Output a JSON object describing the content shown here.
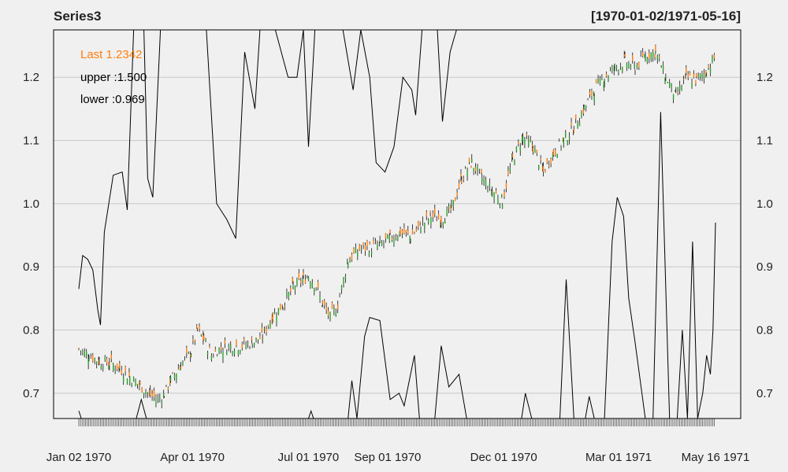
{
  "chart_data": {
    "type": "line",
    "title": "Series3",
    "date_range": "[1970-01-02/1971-05-16]",
    "x_range": [
      "1970-01-02",
      "1971-05-16"
    ],
    "ylim": [
      0.66,
      1.275
    ],
    "y_ticks": [
      0.7,
      0.8,
      0.9,
      1.0,
      1.1,
      1.2
    ],
    "y_tick_labels": [
      "0.7",
      "0.8",
      "0.9",
      "1.0",
      "1.1",
      "1.2"
    ],
    "x_ticks": [
      {
        "date": "1970-01-02",
        "label": "Jan 02 1970"
      },
      {
        "date": "1970-04-01",
        "label": "Apr 01 1970"
      },
      {
        "date": "1970-07-01",
        "label": "Jul 01 1970"
      },
      {
        "date": "1970-09-01",
        "label": "Sep 01 1970"
      },
      {
        "date": "1970-12-01",
        "label": "Dec 01 1970"
      },
      {
        "date": "1971-03-01",
        "label": "Mar 01 1971"
      },
      {
        "date": "1971-05-16",
        "label": "May 16 1971"
      }
    ],
    "grid": true,
    "legend": {
      "position": "top-left",
      "entries": [
        {
          "text": "Last 1.2342",
          "color": "#ff7f0e"
        },
        {
          "text": "upper :1.500",
          "color": "#000000"
        },
        {
          "text": "lower :0.969",
          "color": "#000000"
        }
      ]
    },
    "colors": {
      "up": "#2ca02c",
      "down": "#ff7f0e",
      "line": "#000000",
      "grid": "#c8c8c8"
    },
    "series": [
      {
        "type": "ohlc",
        "points": [
          [
            "1970-01-02",
            0.77
          ],
          [
            "1970-01-10",
            0.76
          ],
          [
            "1970-01-18",
            0.75
          ],
          [
            "1970-01-26",
            0.748
          ],
          [
            "1970-02-03",
            0.74
          ],
          [
            "1970-02-11",
            0.725
          ],
          [
            "1970-02-19",
            0.712
          ],
          [
            "1970-02-27",
            0.697
          ],
          [
            "1970-03-05",
            0.69
          ],
          [
            "1970-03-10",
            0.698
          ],
          [
            "1970-03-15",
            0.72
          ],
          [
            "1970-03-23",
            0.745
          ],
          [
            "1970-03-31",
            0.765
          ],
          [
            "1970-04-05",
            0.8
          ],
          [
            "1970-04-10",
            0.785
          ],
          [
            "1970-04-16",
            0.76
          ],
          [
            "1970-04-22",
            0.77
          ],
          [
            "1970-05-01",
            0.775
          ],
          [
            "1970-05-10",
            0.775
          ],
          [
            "1970-05-18",
            0.78
          ],
          [
            "1970-05-26",
            0.79
          ],
          [
            "1970-06-03",
            0.822
          ],
          [
            "1970-06-11",
            0.84
          ],
          [
            "1970-06-19",
            0.868
          ],
          [
            "1970-06-27",
            0.88
          ],
          [
            "1970-07-01",
            0.886
          ],
          [
            "1970-07-07",
            0.87
          ],
          [
            "1970-07-12",
            0.84
          ],
          [
            "1970-07-18",
            0.82
          ],
          [
            "1970-07-24",
            0.84
          ],
          [
            "1970-08-01",
            0.91
          ],
          [
            "1970-08-10",
            0.928
          ],
          [
            "1970-08-18",
            0.93
          ],
          [
            "1970-08-26",
            0.935
          ],
          [
            "1970-09-03",
            0.945
          ],
          [
            "1970-09-11",
            0.955
          ],
          [
            "1970-09-19",
            0.948
          ],
          [
            "1970-09-27",
            0.965
          ],
          [
            "1970-10-05",
            0.98
          ],
          [
            "1970-10-13",
            0.975
          ],
          [
            "1970-10-21",
            0.99
          ],
          [
            "1970-10-29",
            1.04
          ],
          [
            "1970-11-06",
            1.065
          ],
          [
            "1970-11-14",
            1.04
          ],
          [
            "1970-11-22",
            1.02
          ],
          [
            "1970-11-30",
            1.005
          ],
          [
            "1970-12-08",
            1.07
          ],
          [
            "1970-12-16",
            1.105
          ],
          [
            "1970-12-24",
            1.09
          ],
          [
            "1971-01-01",
            1.05
          ],
          [
            "1971-01-09",
            1.08
          ],
          [
            "1971-01-17",
            1.1
          ],
          [
            "1971-01-25",
            1.12
          ],
          [
            "1971-02-02",
            1.15
          ],
          [
            "1971-02-10",
            1.18
          ],
          [
            "1971-02-18",
            1.2
          ],
          [
            "1971-02-26",
            1.215
          ],
          [
            "1971-03-06",
            1.225
          ],
          [
            "1971-03-14",
            1.215
          ],
          [
            "1971-03-22",
            1.235
          ],
          [
            "1971-03-30",
            1.24
          ],
          [
            "1971-04-07",
            1.2
          ],
          [
            "1971-04-15",
            1.17
          ],
          [
            "1971-04-23",
            1.2
          ],
          [
            "1971-05-01",
            1.195
          ],
          [
            "1971-05-09",
            1.21
          ],
          [
            "1971-05-16",
            1.234
          ]
        ]
      },
      {
        "type": "line",
        "points": [
          [
            "1970-01-02",
            0.865
          ],
          [
            "1970-01-05",
            0.918
          ],
          [
            "1970-01-09",
            0.912
          ],
          [
            "1970-01-13",
            0.895
          ],
          [
            "1970-01-17",
            0.83
          ],
          [
            "1970-01-19",
            0.808
          ],
          [
            "1970-01-22",
            0.955
          ],
          [
            "1970-01-29",
            1.045
          ],
          [
            "1970-02-05",
            1.05
          ],
          [
            "1970-02-09",
            0.99
          ],
          [
            "1970-02-14",
            1.3
          ],
          [
            "1970-02-22",
            1.3
          ],
          [
            "1970-02-25",
            1.04
          ],
          [
            "1970-03-01",
            1.01
          ],
          [
            "1970-03-07",
            1.3
          ],
          [
            "1970-04-12",
            1.3
          ],
          [
            "1970-04-20",
            1.0
          ],
          [
            "1970-04-28",
            0.975
          ],
          [
            "1970-05-05",
            0.945
          ],
          [
            "1970-05-12",
            1.24
          ],
          [
            "1970-05-20",
            1.15
          ],
          [
            "1970-05-24",
            1.3
          ],
          [
            "1970-06-05",
            1.3
          ],
          [
            "1970-06-15",
            1.2
          ],
          [
            "1970-06-22",
            1.2
          ],
          [
            "1970-06-27",
            1.3
          ],
          [
            "1970-07-01",
            1.09
          ],
          [
            "1970-07-06",
            1.3
          ],
          [
            "1970-07-28",
            1.3
          ],
          [
            "1970-08-05",
            1.18
          ],
          [
            "1970-08-11",
            1.3
          ],
          [
            "1970-08-18",
            1.2
          ],
          [
            "1970-08-23",
            1.065
          ],
          [
            "1970-08-30",
            1.05
          ],
          [
            "1970-09-06",
            1.09
          ],
          [
            "1970-09-13",
            1.2
          ],
          [
            "1970-09-20",
            1.18
          ],
          [
            "1970-09-23",
            1.14
          ],
          [
            "1970-09-28",
            1.3
          ],
          [
            "1970-10-10",
            1.3
          ],
          [
            "1970-10-14",
            1.13
          ],
          [
            "1970-10-20",
            1.24
          ],
          [
            "1970-10-25",
            1.3
          ]
        ]
      },
      {
        "type": "line",
        "points": [
          [
            "1970-01-02",
            0.672
          ],
          [
            "1970-01-04",
            0.65
          ],
          [
            "1970-02-16",
            0.65
          ],
          [
            "1970-02-20",
            0.69
          ],
          [
            "1970-02-24",
            0.65
          ],
          [
            "1970-07-01",
            0.65
          ],
          [
            "1970-07-03",
            0.672
          ],
          [
            "1970-07-05",
            0.65
          ],
          [
            "1970-08-01",
            0.65
          ],
          [
            "1970-08-04",
            0.72
          ],
          [
            "1970-08-08",
            0.65
          ],
          [
            "1970-08-14",
            0.79
          ],
          [
            "1970-08-18",
            0.82
          ],
          [
            "1970-08-26",
            0.815
          ],
          [
            "1970-09-03",
            0.69
          ],
          [
            "1970-09-10",
            0.7
          ],
          [
            "1970-09-14",
            0.68
          ],
          [
            "1970-09-22",
            0.76
          ],
          [
            "1970-09-26",
            0.65
          ],
          [
            "1970-10-08",
            0.65
          ],
          [
            "1970-10-13",
            0.775
          ],
          [
            "1970-10-19",
            0.71
          ],
          [
            "1970-10-27",
            0.73
          ],
          [
            "1970-11-02",
            0.65
          ],
          [
            "1970-12-15",
            0.65
          ],
          [
            "1970-12-18",
            0.7
          ],
          [
            "1970-12-23",
            0.65
          ],
          [
            "1971-01-14",
            0.65
          ],
          [
            "1971-01-19",
            0.88
          ],
          [
            "1971-01-25",
            0.65
          ],
          [
            "1971-02-03",
            0.65
          ],
          [
            "1971-02-06",
            0.695
          ],
          [
            "1971-02-10",
            0.65
          ],
          [
            "1971-02-18",
            0.65
          ],
          [
            "1971-02-24",
            0.94
          ],
          [
            "1971-02-28",
            1.01
          ],
          [
            "1971-03-05",
            0.98
          ],
          [
            "1971-03-09",
            0.85
          ],
          [
            "1971-03-14",
            0.78
          ],
          [
            "1971-03-22",
            0.65
          ],
          [
            "1971-03-28",
            0.65
          ],
          [
            "1971-04-03",
            1.145
          ],
          [
            "1971-04-10",
            0.65
          ],
          [
            "1971-04-16",
            0.65
          ],
          [
            "1971-04-20",
            0.8
          ],
          [
            "1971-04-24",
            0.65
          ],
          [
            "1971-04-28",
            0.94
          ],
          [
            "1971-05-02",
            0.65
          ],
          [
            "1971-05-06",
            0.7
          ],
          [
            "1971-05-09",
            0.76
          ],
          [
            "1971-05-12",
            0.73
          ],
          [
            "1971-05-14",
            0.8
          ],
          [
            "1971-05-16",
            0.97
          ]
        ]
      }
    ]
  }
}
